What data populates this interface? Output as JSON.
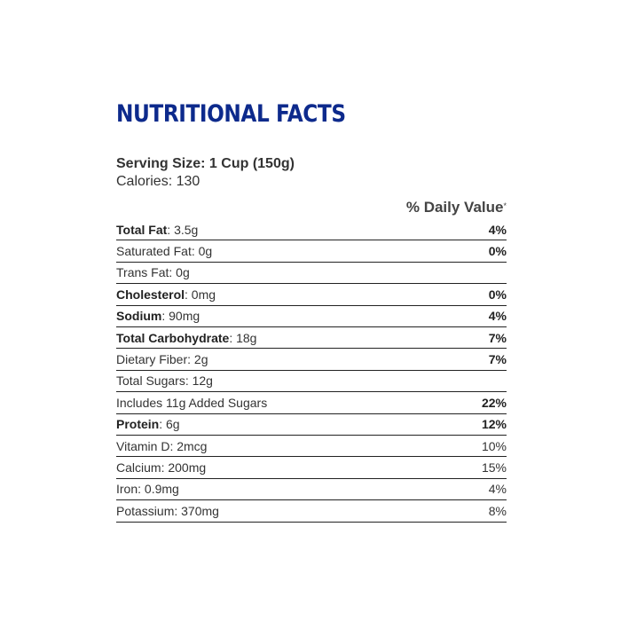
{
  "title": "NUTRITIONAL FACTS",
  "serving_size": "Serving Size: 1 Cup (150g)",
  "calories": "Calories: 130",
  "daily_value_header": "% Daily Value",
  "daily_value_marker": "*",
  "nutrients": [
    {
      "name": "Total Fat",
      "amount": ": 3.5g",
      "dv": "4%"
    },
    {
      "name": "Saturated Fat",
      "amount": ": 0g",
      "dv": "0%"
    },
    {
      "name": "Trans Fat",
      "amount": ": 0g",
      "dv": ""
    },
    {
      "name": "Cholesterol",
      "amount": ": 0mg",
      "dv": "0%"
    },
    {
      "name": "Sodium",
      "amount": ": 90mg",
      "dv": "4%"
    },
    {
      "name": "Total Carbohydrate",
      "amount": ": 18g",
      "dv": "7%"
    },
    {
      "name": "Dietary Fiber",
      "amount": ": 2g",
      "dv": "7%"
    },
    {
      "name": "Total Sugars",
      "amount": ": 12g",
      "dv": ""
    },
    {
      "name": "Includes 11g Added Sugars",
      "amount": "",
      "dv": "22%"
    },
    {
      "name": "Protein",
      "amount": ": 6g",
      "dv": "12%"
    },
    {
      "name": "Vitamin D",
      "amount": ": 2mcg",
      "dv": "10%"
    },
    {
      "name": "Calcium",
      "amount": ": 200mg",
      "dv": "15%"
    },
    {
      "name": "Iron",
      "amount": ": 0.9mg",
      "dv": "4%"
    },
    {
      "name": "Potassium",
      "amount": ": 370mg",
      "dv": "8%"
    }
  ]
}
